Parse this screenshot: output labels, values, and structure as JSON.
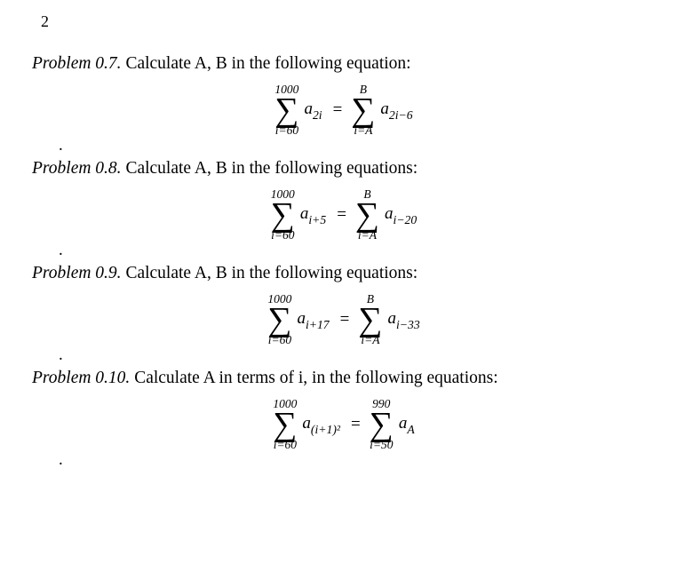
{
  "page_number": "2",
  "problems": {
    "p07": {
      "heading": "Problem 0.7.",
      "text": " Calculate A, B in the following equation:",
      "lhs": {
        "upper": "1000",
        "lower": "i=60",
        "term_html": "a<sub>2i</sub>"
      },
      "rhs": {
        "upper": "B",
        "lower": "i=A",
        "term_html": "a<sub>2i−6</sub>"
      }
    },
    "p08": {
      "heading": "Problem 0.8.",
      "text": " Calculate A, B in the following equations:",
      "lhs": {
        "upper": "1000",
        "lower": "i=60",
        "term_html": "a<sub>i+5</sub>"
      },
      "rhs": {
        "upper": "B",
        "lower": "i=A",
        "term_html": "a<sub>i−20</sub>"
      }
    },
    "p09": {
      "heading": "Problem 0.9.",
      "text": " Calculate A, B in the following equations:",
      "lhs": {
        "upper": "1000",
        "lower": "i=60",
        "term_html": "a<sub>i+17</sub>"
      },
      "rhs": {
        "upper": "B",
        "lower": "i=A",
        "term_html": "a<sub>i−33</sub>"
      }
    },
    "p10": {
      "heading": "Problem 0.10.",
      "text": " Calculate A in terms of i, in the following equations:",
      "lhs": {
        "upper": "1000",
        "lower": "i=60",
        "term_html": "a<sub>(i+1)²</sub>"
      },
      "rhs": {
        "upper": "990",
        "lower": "i=50",
        "term_html": "a<sub>A</sub>"
      }
    }
  },
  "style": {
    "background_color": "#ffffff",
    "text_color": "#000000",
    "font_family": "Times New Roman",
    "base_font_size_pt": 14
  }
}
